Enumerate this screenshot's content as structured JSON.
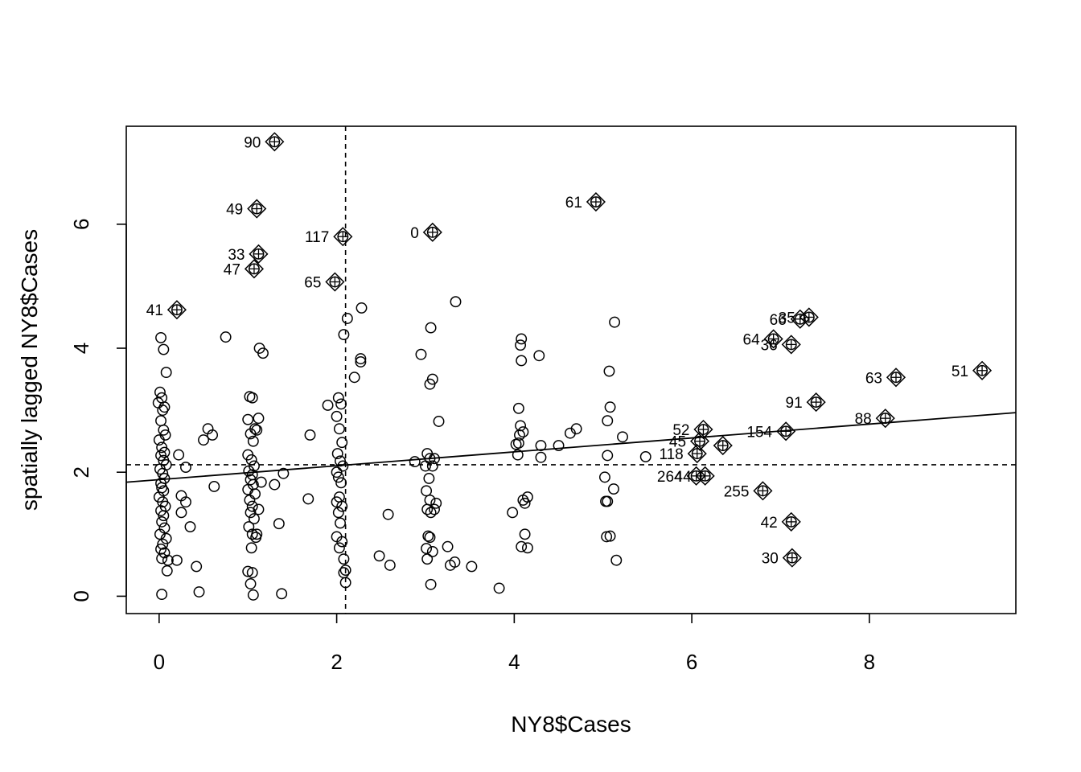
{
  "chart_data": {
    "type": "scatter",
    "title": "",
    "xlabel": "NY8$Cases",
    "ylabel": "spatially lagged NY8$Cases",
    "xlim": [
      -0.37,
      9.65
    ],
    "ylim": [
      -0.28,
      7.58
    ],
    "x_ticks": [
      0,
      2,
      4,
      6,
      8
    ],
    "y_ticks": [
      0,
      2,
      4,
      6
    ],
    "mean_x": 2.1,
    "mean_y": 2.12,
    "regression_line": {
      "intercept": 1.88,
      "slope": 0.112
    },
    "colors": {
      "points": "#000000",
      "background": "#ffffff"
    },
    "points": [
      [
        0.02,
        4.17
      ],
      [
        0.05,
        3.98
      ],
      [
        0.08,
        3.61
      ],
      [
        0.01,
        3.29
      ],
      [
        0.03,
        3.2
      ],
      [
        0.06,
        3.05
      ],
      [
        -0.01,
        3.12
      ],
      [
        0.04,
        3.0
      ],
      [
        0.02,
        2.83
      ],
      [
        0.05,
        2.68
      ],
      [
        0.07,
        2.6
      ],
      [
        0.0,
        2.52
      ],
      [
        0.03,
        2.4
      ],
      [
        0.06,
        2.32
      ],
      [
        0.02,
        2.27
      ],
      [
        0.05,
        2.19
      ],
      [
        0.08,
        2.12
      ],
      [
        0.01,
        2.05
      ],
      [
        0.04,
        1.98
      ],
      [
        0.06,
        1.9
      ],
      [
        0.02,
        1.82
      ],
      [
        0.03,
        1.75
      ],
      [
        0.05,
        1.7
      ],
      [
        0.0,
        1.6
      ],
      [
        0.04,
        1.52
      ],
      [
        0.07,
        1.45
      ],
      [
        0.02,
        1.38
      ],
      [
        0.05,
        1.3
      ],
      [
        0.03,
        1.2
      ],
      [
        0.06,
        1.1
      ],
      [
        0.01,
        1.0
      ],
      [
        0.08,
        0.93
      ],
      [
        0.04,
        0.84
      ],
      [
        0.02,
        0.76
      ],
      [
        0.06,
        0.7
      ],
      [
        0.03,
        0.61
      ],
      [
        0.09,
        0.41
      ],
      [
        0.1,
        0.58
      ],
      [
        0.03,
        0.03
      ],
      [
        0.2,
        0.58
      ],
      [
        0.42,
        0.48
      ],
      [
        0.45,
        0.07
      ],
      [
        0.35,
        1.12
      ],
      [
        0.3,
        1.52
      ],
      [
        0.25,
        1.62
      ],
      [
        0.22,
        2.28
      ],
      [
        0.3,
        2.08
      ],
      [
        0.25,
        1.35
      ],
      [
        0.5,
        2.52
      ],
      [
        0.55,
        2.7
      ],
      [
        0.6,
        2.6
      ],
      [
        0.62,
        1.77
      ],
      [
        0.75,
        4.18
      ],
      [
        1.02,
        3.22
      ],
      [
        1.05,
        3.2
      ],
      [
        1.0,
        2.85
      ],
      [
        1.08,
        2.7
      ],
      [
        1.03,
        2.62
      ],
      [
        1.06,
        2.5
      ],
      [
        1.0,
        2.28
      ],
      [
        1.04,
        2.2
      ],
      [
        1.07,
        2.1
      ],
      [
        1.01,
        2.02
      ],
      [
        1.05,
        1.96
      ],
      [
        1.03,
        1.88
      ],
      [
        1.06,
        1.8
      ],
      [
        1.0,
        1.72
      ],
      [
        1.08,
        1.65
      ],
      [
        1.02,
        1.55
      ],
      [
        1.05,
        1.45
      ],
      [
        1.03,
        1.35
      ],
      [
        1.07,
        1.25
      ],
      [
        1.01,
        1.12
      ],
      [
        1.05,
        1.0
      ],
      [
        1.09,
        0.95
      ],
      [
        1.04,
        0.78
      ],
      [
        1.0,
        0.4
      ],
      [
        1.05,
        0.38
      ],
      [
        1.03,
        0.2
      ],
      [
        1.06,
        0.02
      ],
      [
        1.12,
        2.87
      ],
      [
        1.1,
        2.68
      ],
      [
        1.15,
        1.84
      ],
      [
        1.12,
        1.4
      ],
      [
        1.1,
        1.0
      ],
      [
        1.13,
        4.0
      ],
      [
        1.17,
        3.92
      ],
      [
        1.3,
        1.8
      ],
      [
        1.35,
        1.17
      ],
      [
        1.4,
        1.98
      ],
      [
        1.38,
        0.04
      ],
      [
        1.68,
        1.57
      ],
      [
        1.7,
        2.6
      ],
      [
        1.9,
        3.08
      ],
      [
        2.02,
        3.2
      ],
      [
        2.05,
        3.1
      ],
      [
        2.0,
        2.9
      ],
      [
        2.03,
        2.7
      ],
      [
        2.06,
        2.48
      ],
      [
        2.01,
        2.3
      ],
      [
        2.04,
        2.18
      ],
      [
        2.07,
        2.1
      ],
      [
        2.0,
        2.0
      ],
      [
        2.02,
        1.92
      ],
      [
        2.05,
        1.83
      ],
      [
        2.03,
        1.6
      ],
      [
        2.0,
        1.52
      ],
      [
        2.06,
        1.45
      ],
      [
        2.02,
        1.35
      ],
      [
        2.04,
        1.18
      ],
      [
        2.0,
        0.96
      ],
      [
        2.06,
        0.88
      ],
      [
        2.03,
        0.78
      ],
      [
        2.08,
        0.6
      ],
      [
        2.1,
        0.42
      ],
      [
        2.08,
        0.38
      ],
      [
        2.1,
        0.22
      ],
      [
        2.12,
        4.48
      ],
      [
        2.08,
        4.22
      ],
      [
        2.2,
        3.53
      ],
      [
        2.27,
        3.83
      ],
      [
        2.27,
        3.78
      ],
      [
        2.28,
        4.65
      ],
      [
        2.48,
        0.65
      ],
      [
        2.6,
        0.5
      ],
      [
        2.58,
        1.32
      ],
      [
        2.88,
        2.17
      ],
      [
        2.95,
        3.9
      ],
      [
        3.02,
        2.3
      ],
      [
        3.05,
        2.22
      ],
      [
        3.0,
        2.1
      ],
      [
        3.04,
        1.9
      ],
      [
        3.01,
        1.7
      ],
      [
        3.05,
        1.55
      ],
      [
        3.02,
        1.4
      ],
      [
        3.06,
        1.35
      ],
      [
        3.03,
        0.97
      ],
      [
        3.05,
        0.95
      ],
      [
        3.01,
        0.77
      ],
      [
        3.08,
        0.72
      ],
      [
        3.02,
        0.6
      ],
      [
        3.06,
        0.19
      ],
      [
        3.1,
        1.4
      ],
      [
        3.12,
        1.5
      ],
      [
        3.08,
        2.1
      ],
      [
        3.1,
        2.22
      ],
      [
        3.05,
        3.42
      ],
      [
        3.08,
        3.5
      ],
      [
        3.06,
        4.33
      ],
      [
        3.15,
        2.82
      ],
      [
        3.25,
        0.8
      ],
      [
        3.28,
        0.5
      ],
      [
        3.33,
        0.55
      ],
      [
        3.34,
        4.75
      ],
      [
        3.52,
        0.48
      ],
      [
        3.83,
        0.13
      ],
      [
        3.98,
        1.35
      ],
      [
        4.05,
        2.47
      ],
      [
        4.02,
        2.45
      ],
      [
        4.04,
        2.28
      ],
      [
        4.07,
        2.75
      ],
      [
        4.06,
        2.6
      ],
      [
        4.05,
        3.03
      ],
      [
        4.08,
        3.8
      ],
      [
        4.07,
        4.05
      ],
      [
        4.08,
        4.15
      ],
      [
        4.1,
        2.65
      ],
      [
        4.1,
        1.55
      ],
      [
        4.12,
        1.5
      ],
      [
        4.15,
        1.6
      ],
      [
        4.08,
        0.8
      ],
      [
        4.12,
        1.0
      ],
      [
        4.15,
        0.78
      ],
      [
        4.28,
        3.88
      ],
      [
        4.3,
        2.43
      ],
      [
        4.3,
        2.24
      ],
      [
        4.5,
        2.43
      ],
      [
        4.63,
        2.63
      ],
      [
        4.7,
        2.7
      ],
      [
        5.02,
        1.92
      ],
      [
        5.05,
        1.53
      ],
      [
        5.04,
        0.96
      ],
      [
        5.08,
        0.97
      ],
      [
        5.05,
        2.83
      ],
      [
        5.08,
        3.05
      ],
      [
        5.07,
        3.63
      ],
      [
        5.12,
        1.73
      ],
      [
        5.15,
        0.58
      ],
      [
        5.13,
        4.42
      ],
      [
        5.05,
        2.27
      ],
      [
        5.22,
        2.57
      ],
      [
        5.48,
        2.25
      ],
      [
        5.03,
        1.53
      ]
    ],
    "influential": [
      {
        "label": "90",
        "x": 1.3,
        "y": 7.33
      },
      {
        "label": "49",
        "x": 1.1,
        "y": 6.25
      },
      {
        "label": "33",
        "x": 1.12,
        "y": 5.52
      },
      {
        "label": "47",
        "x": 1.07,
        "y": 5.28
      },
      {
        "label": "117",
        "x": 2.07,
        "y": 5.8
      },
      {
        "label": "65",
        "x": 1.98,
        "y": 5.07
      },
      {
        "label": "41",
        "x": 0.2,
        "y": 4.62
      },
      {
        "label": "0",
        "x": 3.08,
        "y": 5.87
      },
      {
        "label": "61",
        "x": 4.92,
        "y": 6.36
      },
      {
        "label": "66",
        "x": 7.22,
        "y": 4.47
      },
      {
        "label": "35",
        "x": 7.32,
        "y": 4.5
      },
      {
        "label": "64",
        "x": 6.92,
        "y": 4.15
      },
      {
        "label": "36",
        "x": 7.12,
        "y": 4.06
      },
      {
        "label": "51",
        "x": 9.27,
        "y": 3.64
      },
      {
        "label": "63",
        "x": 8.3,
        "y": 3.53
      },
      {
        "label": "91",
        "x": 7.4,
        "y": 3.13
      },
      {
        "label": "88",
        "x": 8.18,
        "y": 2.87
      },
      {
        "label": "154",
        "x": 7.06,
        "y": 2.66
      },
      {
        "label": "52",
        "x": 6.13,
        "y": 2.69
      },
      {
        "label": "45",
        "x": 6.09,
        "y": 2.5
      },
      {
        "label": "118",
        "x": 6.06,
        "y": 2.3
      },
      {
        "label": "264",
        "x": 6.05,
        "y": 1.94
      },
      {
        "label": "44",
        "x": 6.15,
        "y": 1.94
      },
      {
        "label": "",
        "x": 6.35,
        "y": 2.43
      },
      {
        "label": "255",
        "x": 6.8,
        "y": 1.7
      },
      {
        "label": "42",
        "x": 7.12,
        "y": 1.2
      },
      {
        "label": "30",
        "x": 7.13,
        "y": 0.62
      }
    ]
  }
}
